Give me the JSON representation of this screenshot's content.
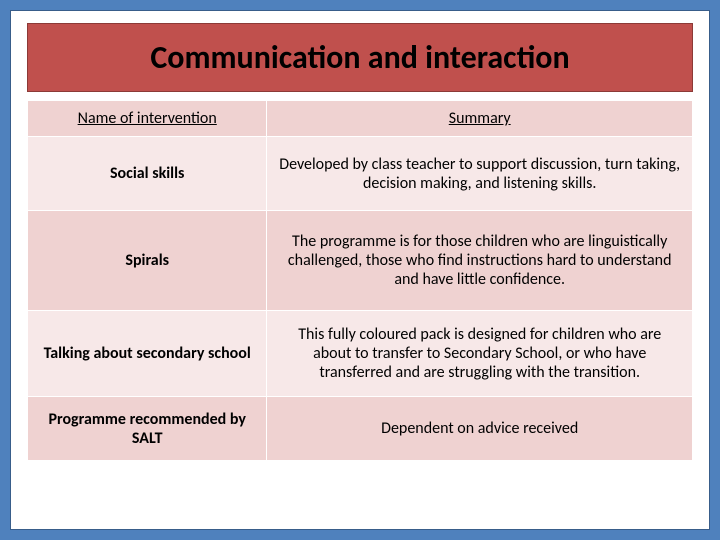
{
  "title": "Communication and interaction",
  "table": {
    "headers": {
      "col1": "Name of intervention",
      "col2": "Summary"
    },
    "rows": [
      {
        "name": "Social skills",
        "summary": "Developed by class teacher to support discussion, turn taking, decision making, and listening skills."
      },
      {
        "name": "Spirals",
        "summary": "The programme is for those children who are linguistically challenged, those who find instructions hard to understand and have little confidence."
      },
      {
        "name": "Talking about secondary school",
        "summary": "This fully coloured pack is designed for children who are about to transfer to Secondary School, or who have transferred and are struggling with the transition."
      },
      {
        "name": "Programme recommended by SALT",
        "summary": "Dependent on advice received"
      }
    ]
  },
  "colors": {
    "page_bg": "#4f81bd",
    "title_bg": "#c0504d",
    "header_bg": "#efd2d1",
    "row_bg": "#f7e8e8",
    "row_alt_bg": "#efd2d1",
    "border": "#ffffff"
  },
  "fonts": {
    "title_size": 32,
    "cell_size": 16
  }
}
